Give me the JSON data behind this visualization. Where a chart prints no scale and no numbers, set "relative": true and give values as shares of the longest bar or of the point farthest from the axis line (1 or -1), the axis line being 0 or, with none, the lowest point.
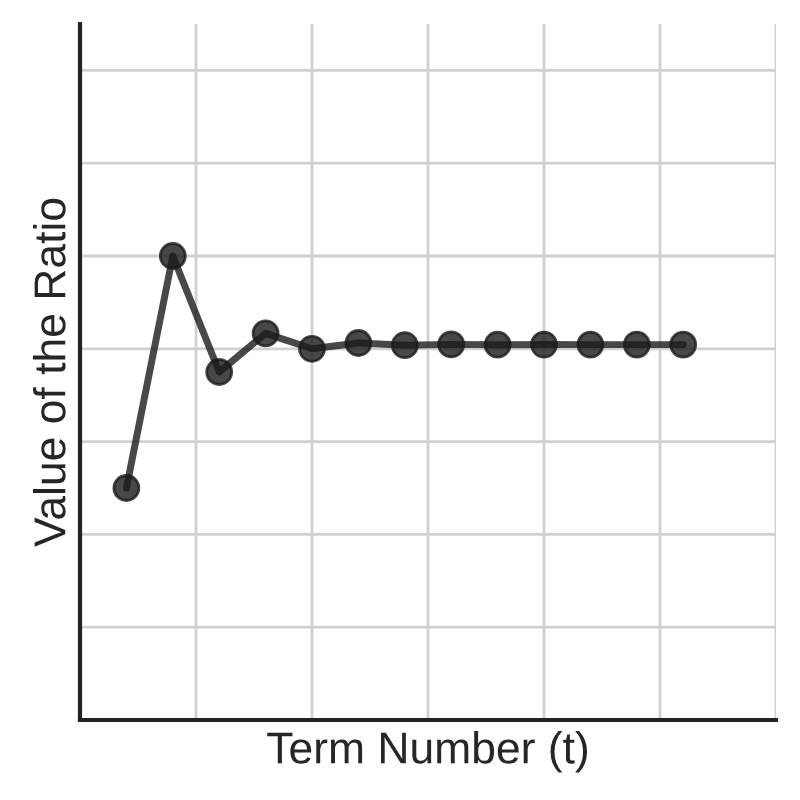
{
  "chart_data": {
    "type": "line",
    "xlabel": "Term Number (t)",
    "ylabel": "Value of the Ratio",
    "relative": true,
    "categories": [
      null,
      null,
      null,
      null,
      null,
      null,
      null,
      null,
      null,
      null,
      null,
      null,
      null
    ],
    "series": [
      {
        "color": "#1a1a1a",
        "values": [
          0.5,
          1,
          0.75,
          0.8333,
          0.8,
          0.8125,
          0.8077,
          0.8095,
          0.8088,
          0.8091,
          0.809,
          0.809,
          0.809
        ]
      }
    ],
    "marker": "circle",
    "line_style": "solid",
    "grid": true
  }
}
